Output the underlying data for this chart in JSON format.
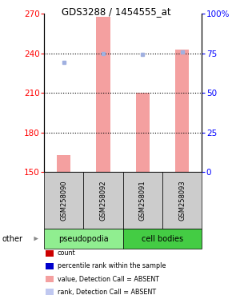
{
  "title": "GDS3288 / 1454555_at",
  "samples": [
    "GSM258090",
    "GSM258092",
    "GSM258091",
    "GSM258093"
  ],
  "bar_values": [
    163,
    268,
    210,
    243
  ],
  "rank_values": [
    233,
    240,
    239,
    241
  ],
  "bar_color": "#f4a0a0",
  "rank_color": "#a0b0e0",
  "ylim_left": [
    150,
    270
  ],
  "ylim_right": [
    0,
    100
  ],
  "yticks_left": [
    150,
    180,
    210,
    240,
    270
  ],
  "yticks_right": [
    0,
    25,
    50,
    75,
    100
  ],
  "ytick_labels_right": [
    "0",
    "25",
    "50",
    "75",
    "100%"
  ],
  "hline_values": [
    180,
    210,
    240
  ],
  "group_colors": {
    "pseudopodia": "#90ee90",
    "cell bodies": "#44cc44"
  },
  "sample_bg_color": "#cccccc",
  "legend_items": [
    {
      "color": "#cc0000",
      "label": "count"
    },
    {
      "color": "#0000cc",
      "label": "percentile rank within the sample"
    },
    {
      "color": "#f4a0a0",
      "label": "value, Detection Call = ABSENT"
    },
    {
      "color": "#c0c8f0",
      "label": "rank, Detection Call = ABSENT"
    }
  ],
  "other_label": "other",
  "baseline": 150,
  "bar_width": 0.35
}
